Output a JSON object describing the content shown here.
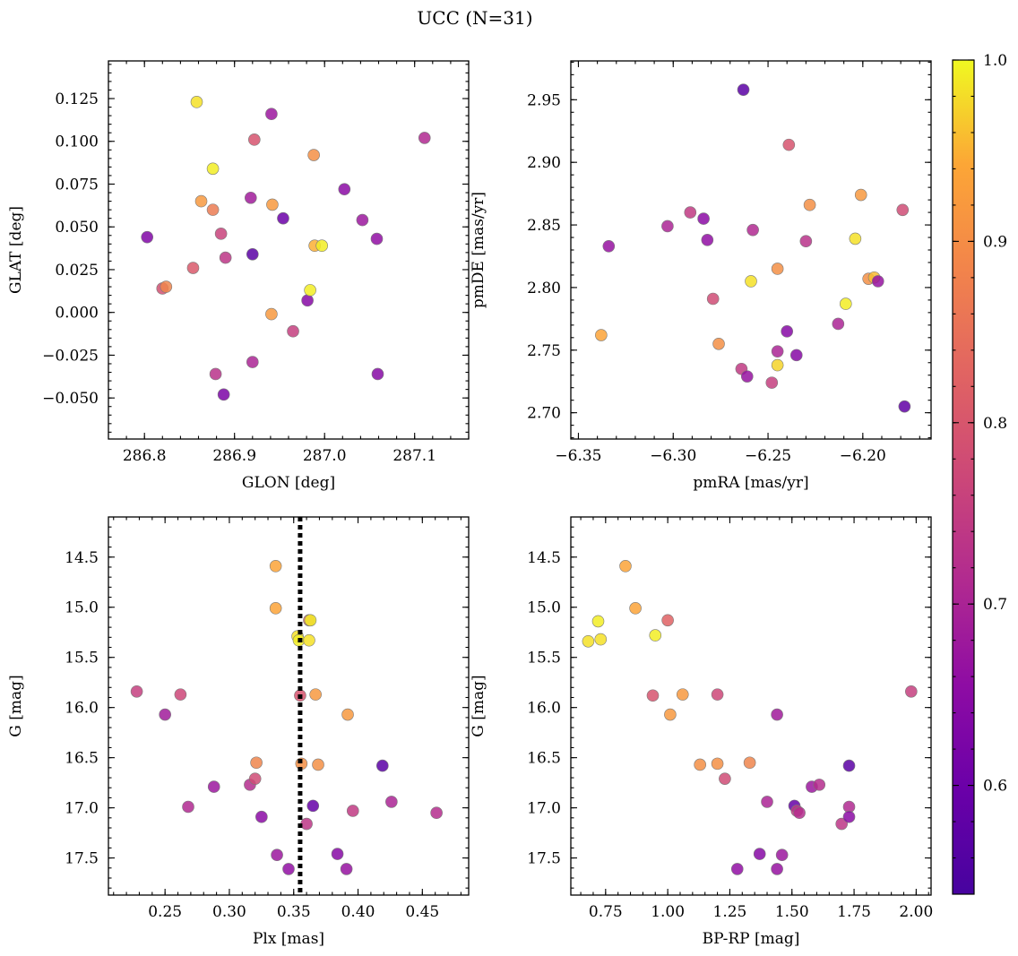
{
  "figure": {
    "title": "UCC (N=31)"
  },
  "colorbar": {
    "range": [
      0.54,
      1.0
    ],
    "ticks": [
      0.6,
      0.7,
      0.8,
      0.9,
      1.0
    ],
    "tick_labels": [
      "0.6",
      "0.7",
      "0.8",
      "0.9",
      "1.0"
    ],
    "colormap": "plasma",
    "label": ""
  },
  "chart_data": [
    {
      "type": "scatter",
      "name_ref": "spatial",
      "xlabel": "GLON [deg]",
      "ylabel": "GLAT [deg]",
      "xlim": [
        286.76,
        287.16
      ],
      "ylim": [
        -0.074,
        0.147
      ],
      "x_ticks": [
        286.8,
        286.9,
        287.0,
        287.1
      ],
      "x_tick_labels": [
        "286.8",
        "286.9",
        "287.0",
        "287.1"
      ],
      "y_ticks": [
        -0.05,
        -0.025,
        0.0,
        0.025,
        0.05,
        0.075,
        0.1,
        0.125
      ],
      "y_tick_labels": [
        "−0.050",
        "−0.025",
        "0.000",
        "0.025",
        "0.050",
        "0.075",
        "0.100",
        "0.125"
      ],
      "color_by": "membership probability (colorbar)",
      "points": [
        {
          "x": 286.803,
          "y": 0.044,
          "c": 0.64
        },
        {
          "x": 286.82,
          "y": 0.014,
          "c": 0.82
        },
        {
          "x": 286.824,
          "y": 0.015,
          "c": 0.9
        },
        {
          "x": 286.854,
          "y": 0.026,
          "c": 0.84
        },
        {
          "x": 286.858,
          "y": 0.123,
          "c": 0.98
        },
        {
          "x": 286.863,
          "y": 0.065,
          "c": 0.92
        },
        {
          "x": 286.876,
          "y": 0.084,
          "c": 0.99
        },
        {
          "x": 286.876,
          "y": 0.06,
          "c": 0.89
        },
        {
          "x": 286.879,
          "y": -0.036,
          "c": 0.75
        },
        {
          "x": 286.885,
          "y": 0.046,
          "c": 0.79
        },
        {
          "x": 286.888,
          "y": -0.048,
          "c": 0.63
        },
        {
          "x": 286.89,
          "y": 0.032,
          "c": 0.76
        },
        {
          "x": 286.918,
          "y": 0.067,
          "c": 0.7
        },
        {
          "x": 286.92,
          "y": 0.034,
          "c": 0.57
        },
        {
          "x": 286.92,
          "y": -0.029,
          "c": 0.72
        },
        {
          "x": 286.922,
          "y": 0.101,
          "c": 0.83
        },
        {
          "x": 286.941,
          "y": 0.116,
          "c": 0.69
        },
        {
          "x": 286.942,
          "y": 0.063,
          "c": 0.92
        },
        {
          "x": 286.941,
          "y": -0.001,
          "c": 0.92
        },
        {
          "x": 286.954,
          "y": 0.055,
          "c": 0.6
        },
        {
          "x": 286.965,
          "y": -0.011,
          "c": 0.78
        },
        {
          "x": 286.981,
          "y": 0.007,
          "c": 0.65
        },
        {
          "x": 286.984,
          "y": 0.013,
          "c": 0.99
        },
        {
          "x": 286.988,
          "y": 0.092,
          "c": 0.91
        },
        {
          "x": 286.989,
          "y": 0.039,
          "c": 0.94
        },
        {
          "x": 286.997,
          "y": 0.039,
          "c": 0.99
        },
        {
          "x": 287.022,
          "y": 0.072,
          "c": 0.66
        },
        {
          "x": 287.042,
          "y": 0.054,
          "c": 0.69
        },
        {
          "x": 287.058,
          "y": 0.043,
          "c": 0.67
        },
        {
          "x": 287.059,
          "y": -0.036,
          "c": 0.65
        },
        {
          "x": 287.111,
          "y": 0.102,
          "c": 0.73
        }
      ]
    },
    {
      "type": "scatter",
      "name_ref": "proper-motion",
      "xlabel": "pmRA [mas/yr]",
      "ylabel": "pmDE [mas/yr]",
      "xlim": [
        -6.354,
        -6.164
      ],
      "ylim": [
        2.679,
        2.981
      ],
      "x_ticks": [
        -6.35,
        -6.3,
        -6.25,
        -6.2
      ],
      "x_tick_labels": [
        "−6.35",
        "−6.30",
        "−6.25",
        "−6.20"
      ],
      "y_ticks": [
        2.7,
        2.75,
        2.8,
        2.85,
        2.9,
        2.95
      ],
      "y_tick_labels": [
        "2.70",
        "2.75",
        "2.80",
        "2.85",
        "2.90",
        "2.95"
      ],
      "color_by": "membership probability (colorbar)",
      "points": [
        {
          "x": -6.338,
          "y": 2.762,
          "c": 0.93
        },
        {
          "x": -6.334,
          "y": 2.833,
          "c": 0.68
        },
        {
          "x": -6.303,
          "y": 2.849,
          "c": 0.72
        },
        {
          "x": -6.291,
          "y": 2.86,
          "c": 0.77
        },
        {
          "x": -6.284,
          "y": 2.855,
          "c": 0.66
        },
        {
          "x": -6.282,
          "y": 2.838,
          "c": 0.67
        },
        {
          "x": -6.279,
          "y": 2.791,
          "c": 0.81
        },
        {
          "x": -6.276,
          "y": 2.755,
          "c": 0.91
        },
        {
          "x": -6.264,
          "y": 2.735,
          "c": 0.77
        },
        {
          "x": -6.263,
          "y": 2.958,
          "c": 0.57
        },
        {
          "x": -6.261,
          "y": 2.729,
          "c": 0.68
        },
        {
          "x": -6.259,
          "y": 2.805,
          "c": 0.98
        },
        {
          "x": -6.258,
          "y": 2.846,
          "c": 0.73
        },
        {
          "x": -6.248,
          "y": 2.724,
          "c": 0.78
        },
        {
          "x": -6.245,
          "y": 2.815,
          "c": 0.91
        },
        {
          "x": -6.245,
          "y": 2.749,
          "c": 0.72
        },
        {
          "x": -6.245,
          "y": 2.738,
          "c": 0.97
        },
        {
          "x": -6.24,
          "y": 2.765,
          "c": 0.65
        },
        {
          "x": -6.239,
          "y": 2.914,
          "c": 0.83
        },
        {
          "x": -6.235,
          "y": 2.746,
          "c": 0.65
        },
        {
          "x": -6.23,
          "y": 2.837,
          "c": 0.75
        },
        {
          "x": -6.228,
          "y": 2.866,
          "c": 0.91
        },
        {
          "x": -6.213,
          "y": 2.771,
          "c": 0.72
        },
        {
          "x": -6.209,
          "y": 2.787,
          "c": 0.99
        },
        {
          "x": -6.204,
          "y": 2.839,
          "c": 0.98
        },
        {
          "x": -6.201,
          "y": 2.874,
          "c": 0.92
        },
        {
          "x": -6.197,
          "y": 2.807,
          "c": 0.91
        },
        {
          "x": -6.194,
          "y": 2.808,
          "c": 0.95
        },
        {
          "x": -6.192,
          "y": 2.805,
          "c": 0.68
        },
        {
          "x": -6.179,
          "y": 2.862,
          "c": 0.81
        },
        {
          "x": -6.178,
          "y": 2.705,
          "c": 0.58
        }
      ]
    },
    {
      "type": "scatter",
      "name_ref": "parallax-magnitude",
      "xlabel": "Plx [mas]",
      "ylabel": "G [mag]",
      "xlim": [
        0.206,
        0.486
      ],
      "ylim": [
        17.87,
        14.1
      ],
      "y_inverted": true,
      "x_ticks": [
        0.25,
        0.3,
        0.35,
        0.4,
        0.45
      ],
      "x_tick_labels": [
        "0.25",
        "0.30",
        "0.35",
        "0.40",
        "0.45"
      ],
      "y_ticks": [
        14.5,
        15.0,
        15.5,
        16.0,
        16.5,
        17.0,
        17.5
      ],
      "y_tick_labels": [
        "14.5",
        "15.0",
        "15.5",
        "16.0",
        "16.5",
        "17.0",
        "17.5"
      ],
      "vline": {
        "x": 0.355,
        "style": "dotted",
        "color": "#000000"
      },
      "color_by": "membership probability (colorbar)",
      "points": [
        {
          "x": 0.228,
          "y": 15.84,
          "c": 0.78
        },
        {
          "x": 0.25,
          "y": 16.07,
          "c": 0.7
        },
        {
          "x": 0.262,
          "y": 15.87,
          "c": 0.8
        },
        {
          "x": 0.268,
          "y": 16.99,
          "c": 0.73
        },
        {
          "x": 0.288,
          "y": 16.79,
          "c": 0.69
        },
        {
          "x": 0.316,
          "y": 16.77,
          "c": 0.74
        },
        {
          "x": 0.32,
          "y": 16.71,
          "c": 0.81
        },
        {
          "x": 0.321,
          "y": 16.55,
          "c": 0.9
        },
        {
          "x": 0.325,
          "y": 17.09,
          "c": 0.66
        },
        {
          "x": 0.336,
          "y": 14.59,
          "c": 0.93
        },
        {
          "x": 0.336,
          "y": 15.01,
          "c": 0.93
        },
        {
          "x": 0.337,
          "y": 17.47,
          "c": 0.69
        },
        {
          "x": 0.346,
          "y": 17.61,
          "c": 0.67
        },
        {
          "x": 0.353,
          "y": 15.29,
          "c": 0.98
        },
        {
          "x": 0.354,
          "y": 15.33,
          "c": 0.99
        },
        {
          "x": 0.355,
          "y": 15.88,
          "c": 0.83
        },
        {
          "x": 0.356,
          "y": 16.56,
          "c": 0.91
        },
        {
          "x": 0.36,
          "y": 17.16,
          "c": 0.76
        },
        {
          "x": 0.362,
          "y": 15.13,
          "c": 0.86
        },
        {
          "x": 0.362,
          "y": 15.33,
          "c": 0.98
        },
        {
          "x": 0.363,
          "y": 15.13,
          "c": 0.99
        },
        {
          "x": 0.365,
          "y": 16.98,
          "c": 0.59
        },
        {
          "x": 0.367,
          "y": 15.87,
          "c": 0.92
        },
        {
          "x": 0.369,
          "y": 16.57,
          "c": 0.91
        },
        {
          "x": 0.384,
          "y": 17.46,
          "c": 0.65
        },
        {
          "x": 0.391,
          "y": 17.61,
          "c": 0.68
        },
        {
          "x": 0.392,
          "y": 16.07,
          "c": 0.92
        },
        {
          "x": 0.396,
          "y": 17.03,
          "c": 0.77
        },
        {
          "x": 0.419,
          "y": 16.58,
          "c": 0.57
        },
        {
          "x": 0.426,
          "y": 16.94,
          "c": 0.72
        },
        {
          "x": 0.461,
          "y": 17.05,
          "c": 0.74
        }
      ]
    },
    {
      "type": "scatter",
      "name_ref": "color-magnitude",
      "xlabel": "BP-RP [mag]",
      "ylabel": "G [mag]",
      "xlim": [
        0.61,
        2.06
      ],
      "ylim": [
        17.87,
        14.1
      ],
      "y_inverted": true,
      "x_ticks": [
        0.75,
        1.0,
        1.25,
        1.5,
        1.75,
        2.0
      ],
      "x_tick_labels": [
        "0.75",
        "1.00",
        "1.25",
        "1.50",
        "1.75",
        "2.00"
      ],
      "y_ticks": [
        14.5,
        15.0,
        15.5,
        16.0,
        16.5,
        17.0,
        17.5
      ],
      "y_tick_labels": [
        "14.5",
        "15.0",
        "15.5",
        "16.0",
        "16.5",
        "17.0",
        "17.5"
      ],
      "color_by": "membership probability (colorbar)",
      "points": [
        {
          "x": 0.68,
          "y": 15.34,
          "c": 0.98
        },
        {
          "x": 0.72,
          "y": 15.14,
          "c": 0.99
        },
        {
          "x": 0.73,
          "y": 15.32,
          "c": 0.98
        },
        {
          "x": 0.83,
          "y": 14.59,
          "c": 0.93
        },
        {
          "x": 0.87,
          "y": 15.01,
          "c": 0.93
        },
        {
          "x": 0.94,
          "y": 15.88,
          "c": 0.83
        },
        {
          "x": 0.95,
          "y": 15.28,
          "c": 0.99
        },
        {
          "x": 1.0,
          "y": 15.13,
          "c": 0.86
        },
        {
          "x": 1.01,
          "y": 16.07,
          "c": 0.92
        },
        {
          "x": 1.06,
          "y": 15.87,
          "c": 0.92
        },
        {
          "x": 1.13,
          "y": 16.57,
          "c": 0.91
        },
        {
          "x": 1.2,
          "y": 15.87,
          "c": 0.8
        },
        {
          "x": 1.2,
          "y": 16.56,
          "c": 0.91
        },
        {
          "x": 1.23,
          "y": 16.71,
          "c": 0.81
        },
        {
          "x": 1.28,
          "y": 17.61,
          "c": 0.67
        },
        {
          "x": 1.33,
          "y": 16.55,
          "c": 0.9
        },
        {
          "x": 1.37,
          "y": 17.46,
          "c": 0.65
        },
        {
          "x": 1.4,
          "y": 16.94,
          "c": 0.72
        },
        {
          "x": 1.44,
          "y": 16.07,
          "c": 0.7
        },
        {
          "x": 1.44,
          "y": 17.61,
          "c": 0.68
        },
        {
          "x": 1.46,
          "y": 17.47,
          "c": 0.69
        },
        {
          "x": 1.51,
          "y": 16.98,
          "c": 0.59
        },
        {
          "x": 1.52,
          "y": 17.03,
          "c": 0.77
        },
        {
          "x": 1.53,
          "y": 17.05,
          "c": 0.74
        },
        {
          "x": 1.58,
          "y": 16.79,
          "c": 0.69
        },
        {
          "x": 1.61,
          "y": 16.77,
          "c": 0.74
        },
        {
          "x": 1.7,
          "y": 17.16,
          "c": 0.76
        },
        {
          "x": 1.73,
          "y": 16.58,
          "c": 0.57
        },
        {
          "x": 1.73,
          "y": 16.99,
          "c": 0.73
        },
        {
          "x": 1.73,
          "y": 17.09,
          "c": 0.66
        },
        {
          "x": 1.98,
          "y": 15.84,
          "c": 0.78
        }
      ]
    }
  ]
}
